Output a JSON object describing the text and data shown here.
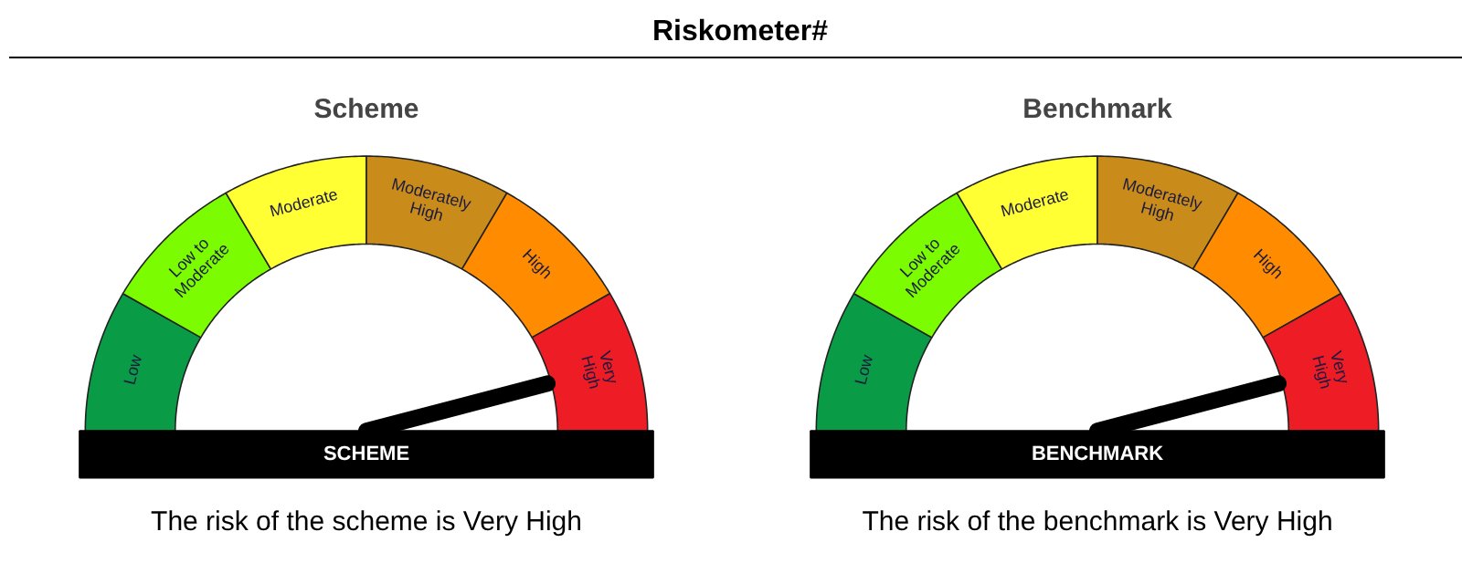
{
  "chart_data": [
    {
      "type": "donut",
      "title": "Riskometer#",
      "subtitle": "Scheme",
      "categories": [
        "Low",
        "Low to Moderate",
        "Moderate",
        "Moderately High",
        "High",
        "Very High"
      ],
      "values": [
        16.67,
        16.67,
        16.67,
        16.67,
        16.67,
        16.67
      ],
      "colors": [
        "#0a9b47",
        "#7cfc00",
        "#ffff33",
        "#c98c1a",
        "#ff8c00",
        "#ee1c25"
      ],
      "needle": "Very High",
      "annotations": [
        "SCHEME",
        "The risk of the scheme is Very High"
      ]
    },
    {
      "type": "donut",
      "subtitle": "Benchmark",
      "categories": [
        "Low",
        "Low to Moderate",
        "Moderate",
        "Moderately High",
        "High",
        "Very High"
      ],
      "values": [
        16.67,
        16.67,
        16.67,
        16.67,
        16.67,
        16.67
      ],
      "colors": [
        "#0a9b47",
        "#7cfc00",
        "#ffff33",
        "#c98c1a",
        "#ff8c00",
        "#ee1c25"
      ],
      "needle": "Very High",
      "annotations": [
        "BENCHMARK",
        "The risk of the benchmark is Very High"
      ]
    }
  ]
}
